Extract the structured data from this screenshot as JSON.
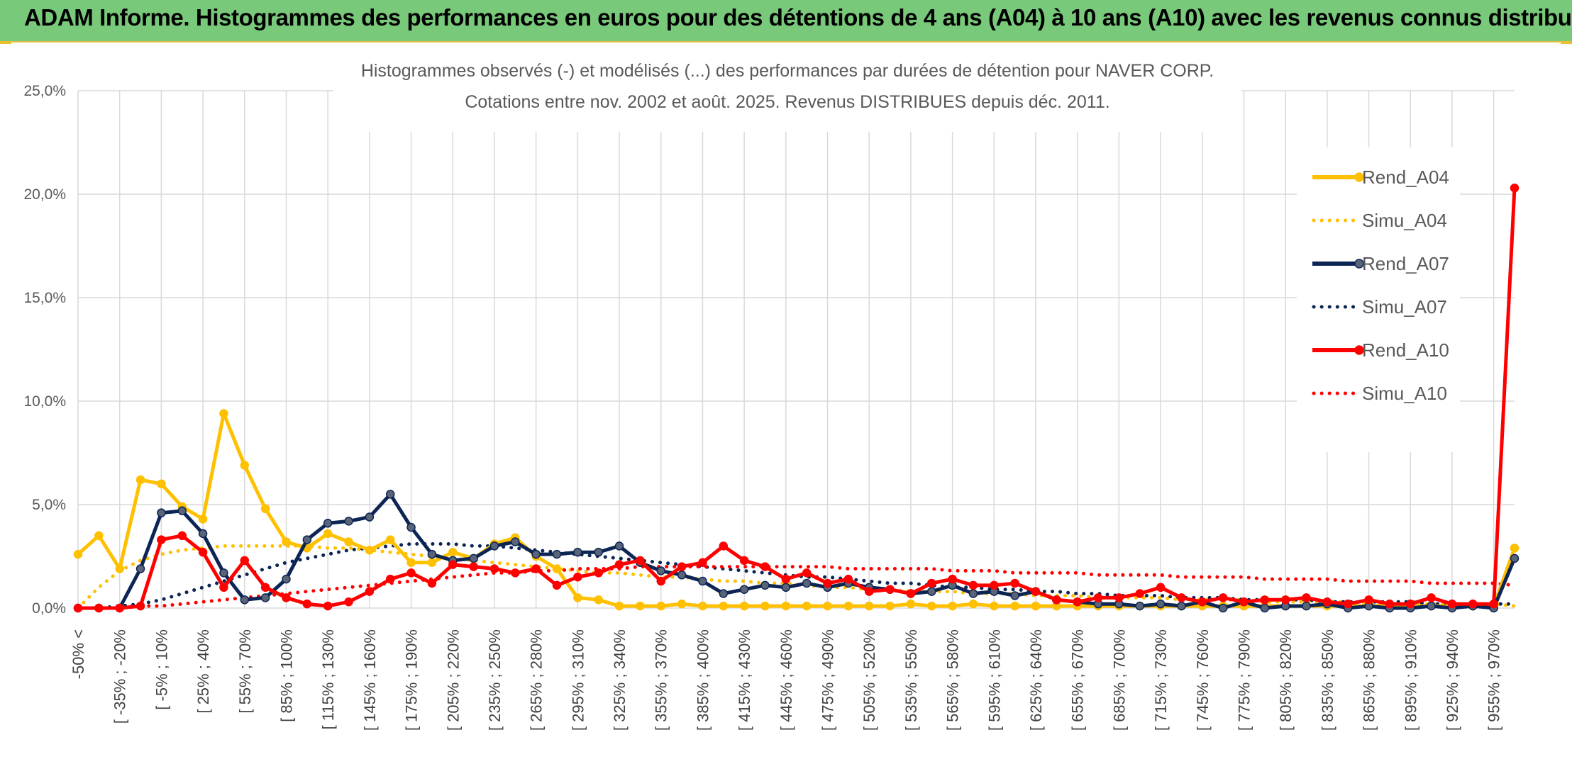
{
  "banner": {
    "title": "ADAM Informe. Histogrammes des performances en euros pour des détentions de 4 ans (A04) à 10 ans (A10) avec les revenus connus distribués"
  },
  "chart_data": {
    "type": "line",
    "title": "Histogrammes observés (-) et modélisés (...) des performances par durées de détention pour NAVER CORP.",
    "subtitle": "Cotations entre nov. 2002 et août. 2025. Revenus DISTRIBUES depuis déc. 2011.",
    "xlabel": "",
    "ylabel": "",
    "ylim": [
      0,
      25
    ],
    "yticks": [
      "0,0%",
      "5,0%",
      "10,0%",
      "15,0%",
      "20,0%",
      "25,0%"
    ],
    "grid": true,
    "legend_position": "right",
    "x_tick_labels": [
      "-50% <",
      "[ -35% ; -20%",
      "[ -5% ; 10%",
      "[ 25% ; 40%",
      "[ 55% ; 70%",
      "[ 85% ; 100%",
      "[ 115% ; 130%",
      "[ 145% ; 160%",
      "[ 175% ; 190%",
      "[ 205% ; 220%",
      "[ 235% ; 250%",
      "[ 265% ; 280%",
      "[ 295% ; 310%",
      "[ 325% ; 340%",
      "[ 355% ; 370%",
      "[ 385% ; 400%",
      "[ 415% ; 430%",
      "[ 445% ; 460%",
      "[ 475% ; 490%",
      "[ 505% ; 520%",
      "[ 535% ; 550%",
      "[ 565% ; 580%",
      "[ 595% ; 610%",
      "[ 625% ; 640%",
      "[ 655% ; 670%",
      "[ 685% ; 700%",
      "[ 715% ; 730%",
      "[ 745% ; 760%",
      "[ 775% ; 790%",
      "[ 805% ; 820%",
      "[ 835% ; 850%",
      "[ 865% ; 880%",
      "[ 895% ; 910%",
      "[ 925% ; 940%",
      "[ 955% ; 970%"
    ],
    "series": [
      {
        "name": "Rend_A04",
        "style": "solid",
        "markers": true,
        "color": "#ffc000",
        "values": [
          2.6,
          3.5,
          1.9,
          6.2,
          6.0,
          4.9,
          4.3,
          9.4,
          6.9,
          4.8,
          3.2,
          2.9,
          3.6,
          3.2,
          2.8,
          3.3,
          2.2,
          2.2,
          2.7,
          2.4,
          3.1,
          3.4,
          2.5,
          1.9,
          0.5,
          0.4,
          0.1,
          0.1,
          0.1,
          0.2,
          0.1,
          0.1,
          0.1,
          0.1,
          0.1,
          0.1,
          0.1,
          0.1,
          0.1,
          0.1,
          0.2,
          0.1,
          0.1,
          0.2,
          0.1,
          0.1,
          0.1,
          0.1,
          0.1,
          0.1,
          0.1,
          0.1,
          0.1,
          0.1,
          0.1,
          0.1,
          0.1,
          0.1,
          0.1,
          0.1,
          0.1,
          0.1,
          0.1,
          0.1,
          0.1,
          0.1,
          0.1,
          0.1,
          0.1,
          2.9
        ]
      },
      {
        "name": "Simu_A04",
        "style": "dotted",
        "markers": false,
        "color": "#ffc000",
        "values": [
          0.0,
          1.0,
          1.8,
          2.3,
          2.6,
          2.8,
          2.9,
          3.0,
          3.0,
          3.0,
          3.0,
          3.0,
          2.9,
          2.9,
          2.8,
          2.7,
          2.6,
          2.5,
          2.4,
          2.3,
          2.2,
          2.1,
          2.0,
          1.9,
          1.8,
          1.7,
          1.7,
          1.6,
          1.5,
          1.5,
          1.4,
          1.3,
          1.3,
          1.2,
          1.2,
          1.1,
          1.0,
          1.0,
          0.9,
          0.9,
          0.8,
          0.8,
          0.8,
          0.7,
          0.7,
          0.7,
          0.6,
          0.6,
          0.6,
          0.5,
          0.5,
          0.5,
          0.5,
          0.4,
          0.4,
          0.4,
          0.4,
          0.3,
          0.3,
          0.3,
          0.3,
          0.3,
          0.2,
          0.2,
          0.2,
          0.2,
          0.2,
          0.2,
          0.2,
          0.1
        ]
      },
      {
        "name": "Rend_A07",
        "style": "solid",
        "markers": true,
        "color": "#0d2555",
        "values": [
          0.0,
          0.0,
          0.0,
          1.9,
          4.6,
          4.7,
          3.6,
          1.7,
          0.4,
          0.5,
          1.4,
          3.3,
          4.1,
          4.2,
          4.4,
          5.5,
          3.9,
          2.6,
          2.3,
          2.4,
          3.0,
          3.2,
          2.6,
          2.6,
          2.7,
          2.7,
          3.0,
          2.2,
          1.8,
          1.6,
          1.3,
          0.7,
          0.9,
          1.1,
          1.0,
          1.2,
          1.0,
          1.2,
          1.0,
          0.9,
          0.7,
          0.8,
          1.1,
          0.7,
          0.8,
          0.6,
          0.8,
          0.4,
          0.3,
          0.2,
          0.2,
          0.1,
          0.2,
          0.1,
          0.3,
          0.0,
          0.3,
          0.0,
          0.1,
          0.1,
          0.2,
          0.0,
          0.1,
          0.0,
          0.0,
          0.1,
          0.0,
          0.1,
          0.0,
          2.4
        ]
      },
      {
        "name": "Simu_A07",
        "style": "dotted",
        "markers": false,
        "color": "#0d2555",
        "values": [
          0.0,
          0.0,
          0.1,
          0.2,
          0.4,
          0.7,
          1.0,
          1.3,
          1.6,
          1.9,
          2.2,
          2.4,
          2.6,
          2.8,
          2.9,
          3.0,
          3.1,
          3.1,
          3.1,
          3.0,
          3.0,
          2.9,
          2.8,
          2.7,
          2.6,
          2.5,
          2.4,
          2.3,
          2.2,
          2.1,
          2.0,
          1.9,
          1.8,
          1.7,
          1.6,
          1.5,
          1.5,
          1.4,
          1.3,
          1.2,
          1.2,
          1.1,
          1.0,
          1.0,
          0.9,
          0.9,
          0.8,
          0.8,
          0.7,
          0.7,
          0.6,
          0.6,
          0.6,
          0.5,
          0.5,
          0.5,
          0.4,
          0.4,
          0.4,
          0.4,
          0.3,
          0.3,
          0.3,
          0.3,
          0.3,
          0.2,
          0.2,
          0.2,
          0.2,
          0.2
        ]
      },
      {
        "name": "Rend_A10",
        "style": "solid",
        "markers": true,
        "color": "#ff0000",
        "values": [
          0.0,
          0.0,
          0.0,
          0.1,
          3.3,
          3.5,
          2.7,
          1.0,
          2.3,
          1.0,
          0.5,
          0.2,
          0.1,
          0.3,
          0.8,
          1.4,
          1.7,
          1.2,
          2.1,
          2.0,
          1.9,
          1.7,
          1.9,
          1.1,
          1.5,
          1.7,
          2.1,
          2.3,
          1.3,
          2.0,
          2.2,
          3.0,
          2.3,
          2.0,
          1.4,
          1.7,
          1.2,
          1.4,
          0.8,
          0.9,
          0.7,
          1.2,
          1.4,
          1.1,
          1.1,
          1.2,
          0.8,
          0.4,
          0.3,
          0.5,
          0.5,
          0.7,
          1.0,
          0.5,
          0.3,
          0.5,
          0.3,
          0.4,
          0.4,
          0.5,
          0.3,
          0.2,
          0.4,
          0.2,
          0.2,
          0.5,
          0.2,
          0.2,
          0.2,
          20.3
        ]
      },
      {
        "name": "Simu_A10",
        "style": "dotted",
        "markers": false,
        "color": "#ff0000",
        "values": [
          0.0,
          0.0,
          0.0,
          0.1,
          0.1,
          0.2,
          0.3,
          0.4,
          0.5,
          0.6,
          0.7,
          0.8,
          0.9,
          1.0,
          1.1,
          1.2,
          1.3,
          1.4,
          1.5,
          1.6,
          1.7,
          1.7,
          1.8,
          1.8,
          1.9,
          1.9,
          1.9,
          2.0,
          2.0,
          2.0,
          2.0,
          2.0,
          2.0,
          2.0,
          2.0,
          2.0,
          2.0,
          1.9,
          1.9,
          1.9,
          1.9,
          1.9,
          1.8,
          1.8,
          1.8,
          1.7,
          1.7,
          1.7,
          1.7,
          1.6,
          1.6,
          1.6,
          1.6,
          1.5,
          1.5,
          1.5,
          1.5,
          1.4,
          1.4,
          1.4,
          1.4,
          1.3,
          1.3,
          1.3,
          1.3,
          1.2,
          1.2,
          1.2,
          1.2,
          1.1
        ]
      }
    ]
  }
}
